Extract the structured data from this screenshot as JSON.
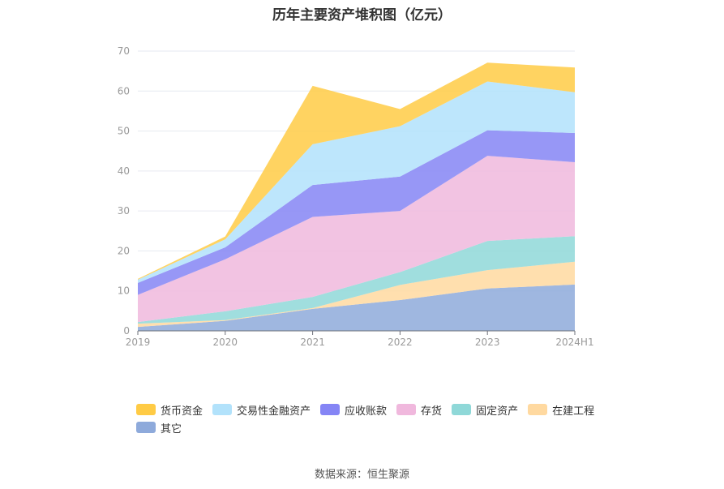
{
  "title": "历年主要资产堆积图（亿元）",
  "source": "数据来源：恒生聚源",
  "chart_data": {
    "type": "area",
    "stacked": true,
    "x": [
      "2019",
      "2020",
      "2021",
      "2022",
      "2023",
      "2024H1"
    ],
    "ylim": [
      0,
      70
    ],
    "yticks": [
      0,
      10,
      20,
      30,
      40,
      50,
      60,
      70
    ],
    "grid": true,
    "legend_position": "bottom",
    "series": [
      {
        "name": "其它",
        "color": "#8eaadb",
        "values": [
          1.0,
          2.5,
          5.5,
          7.7,
          10.6,
          11.6
        ]
      },
      {
        "name": "在建工程",
        "color": "#ffd9a0",
        "values": [
          0.8,
          0.2,
          0.2,
          3.8,
          4.6,
          5.7
        ]
      },
      {
        "name": "固定资产",
        "color": "#8fd8d8",
        "values": [
          0.4,
          2.2,
          2.8,
          3.2,
          7.3,
          6.4
        ]
      },
      {
        "name": "存货",
        "color": "#f0b8dd",
        "values": [
          6.8,
          13.0,
          20.0,
          15.3,
          21.3,
          18.5
        ]
      },
      {
        "name": "应收账款",
        "color": "#8585f5",
        "values": [
          3.0,
          3.0,
          8.0,
          8.6,
          6.4,
          7.3
        ]
      },
      {
        "name": "交易性金融资产",
        "color": "#b2e2fb",
        "values": [
          0.8,
          2.0,
          10.2,
          12.6,
          12.2,
          10.2
        ]
      },
      {
        "name": "货币资金",
        "color": "#ffcb45",
        "values": [
          0.2,
          0.7,
          14.6,
          4.3,
          4.7,
          6.2
        ]
      }
    ],
    "legend_order": [
      "货币资金",
      "交易性金融资产",
      "应收账款",
      "存货",
      "固定资产",
      "在建工程",
      "其它"
    ]
  }
}
